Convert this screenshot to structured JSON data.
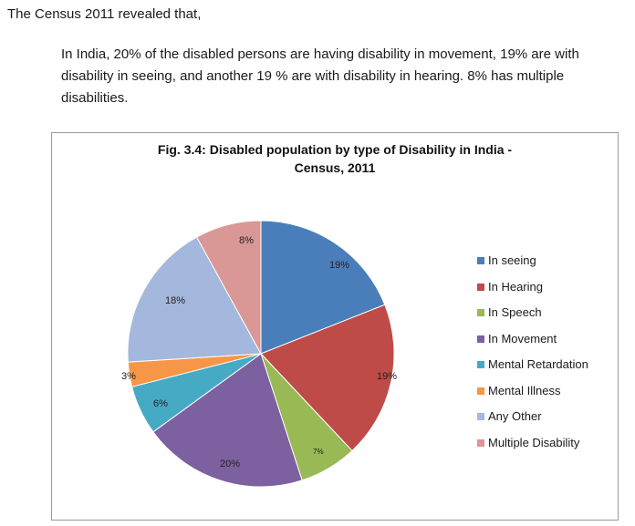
{
  "document": {
    "intro": "The Census 2011 revealed that,",
    "paragraph": "In India, 20% of the disabled persons are having disability in movement, 19% are with disability in seeing, and another 19 % are with disability in hearing. 8% has multiple disabilities."
  },
  "chart_data": {
    "type": "pie",
    "title_line1": "Fig. 3.4: Disabled population by type of Disability in India -",
    "title_line2": "Census, 2011",
    "legend_position": "right",
    "slices": [
      {
        "name": "In seeing",
        "value": 19,
        "label": "19%",
        "color": "#4a7ebb"
      },
      {
        "name": "In Hearing",
        "value": 19,
        "label": "19%",
        "color": "#be4b48"
      },
      {
        "name": "In Speech",
        "value": 7,
        "label": "7%",
        "color": "#98b954"
      },
      {
        "name": "In Movement",
        "value": 20,
        "label": "20%",
        "color": "#7d60a0"
      },
      {
        "name": "Mental Retardation",
        "value": 6,
        "label": "6%",
        "color": "#46aac5"
      },
      {
        "name": "Mental Illness",
        "value": 3,
        "label": "3%",
        "color": "#f79646"
      },
      {
        "name": "Any Other",
        "value": 18,
        "label": "18%",
        "color": "#a4b7dc"
      },
      {
        "name": "Multiple Disability",
        "value": 8,
        "label": "8%",
        "color": "#d99795"
      }
    ]
  }
}
